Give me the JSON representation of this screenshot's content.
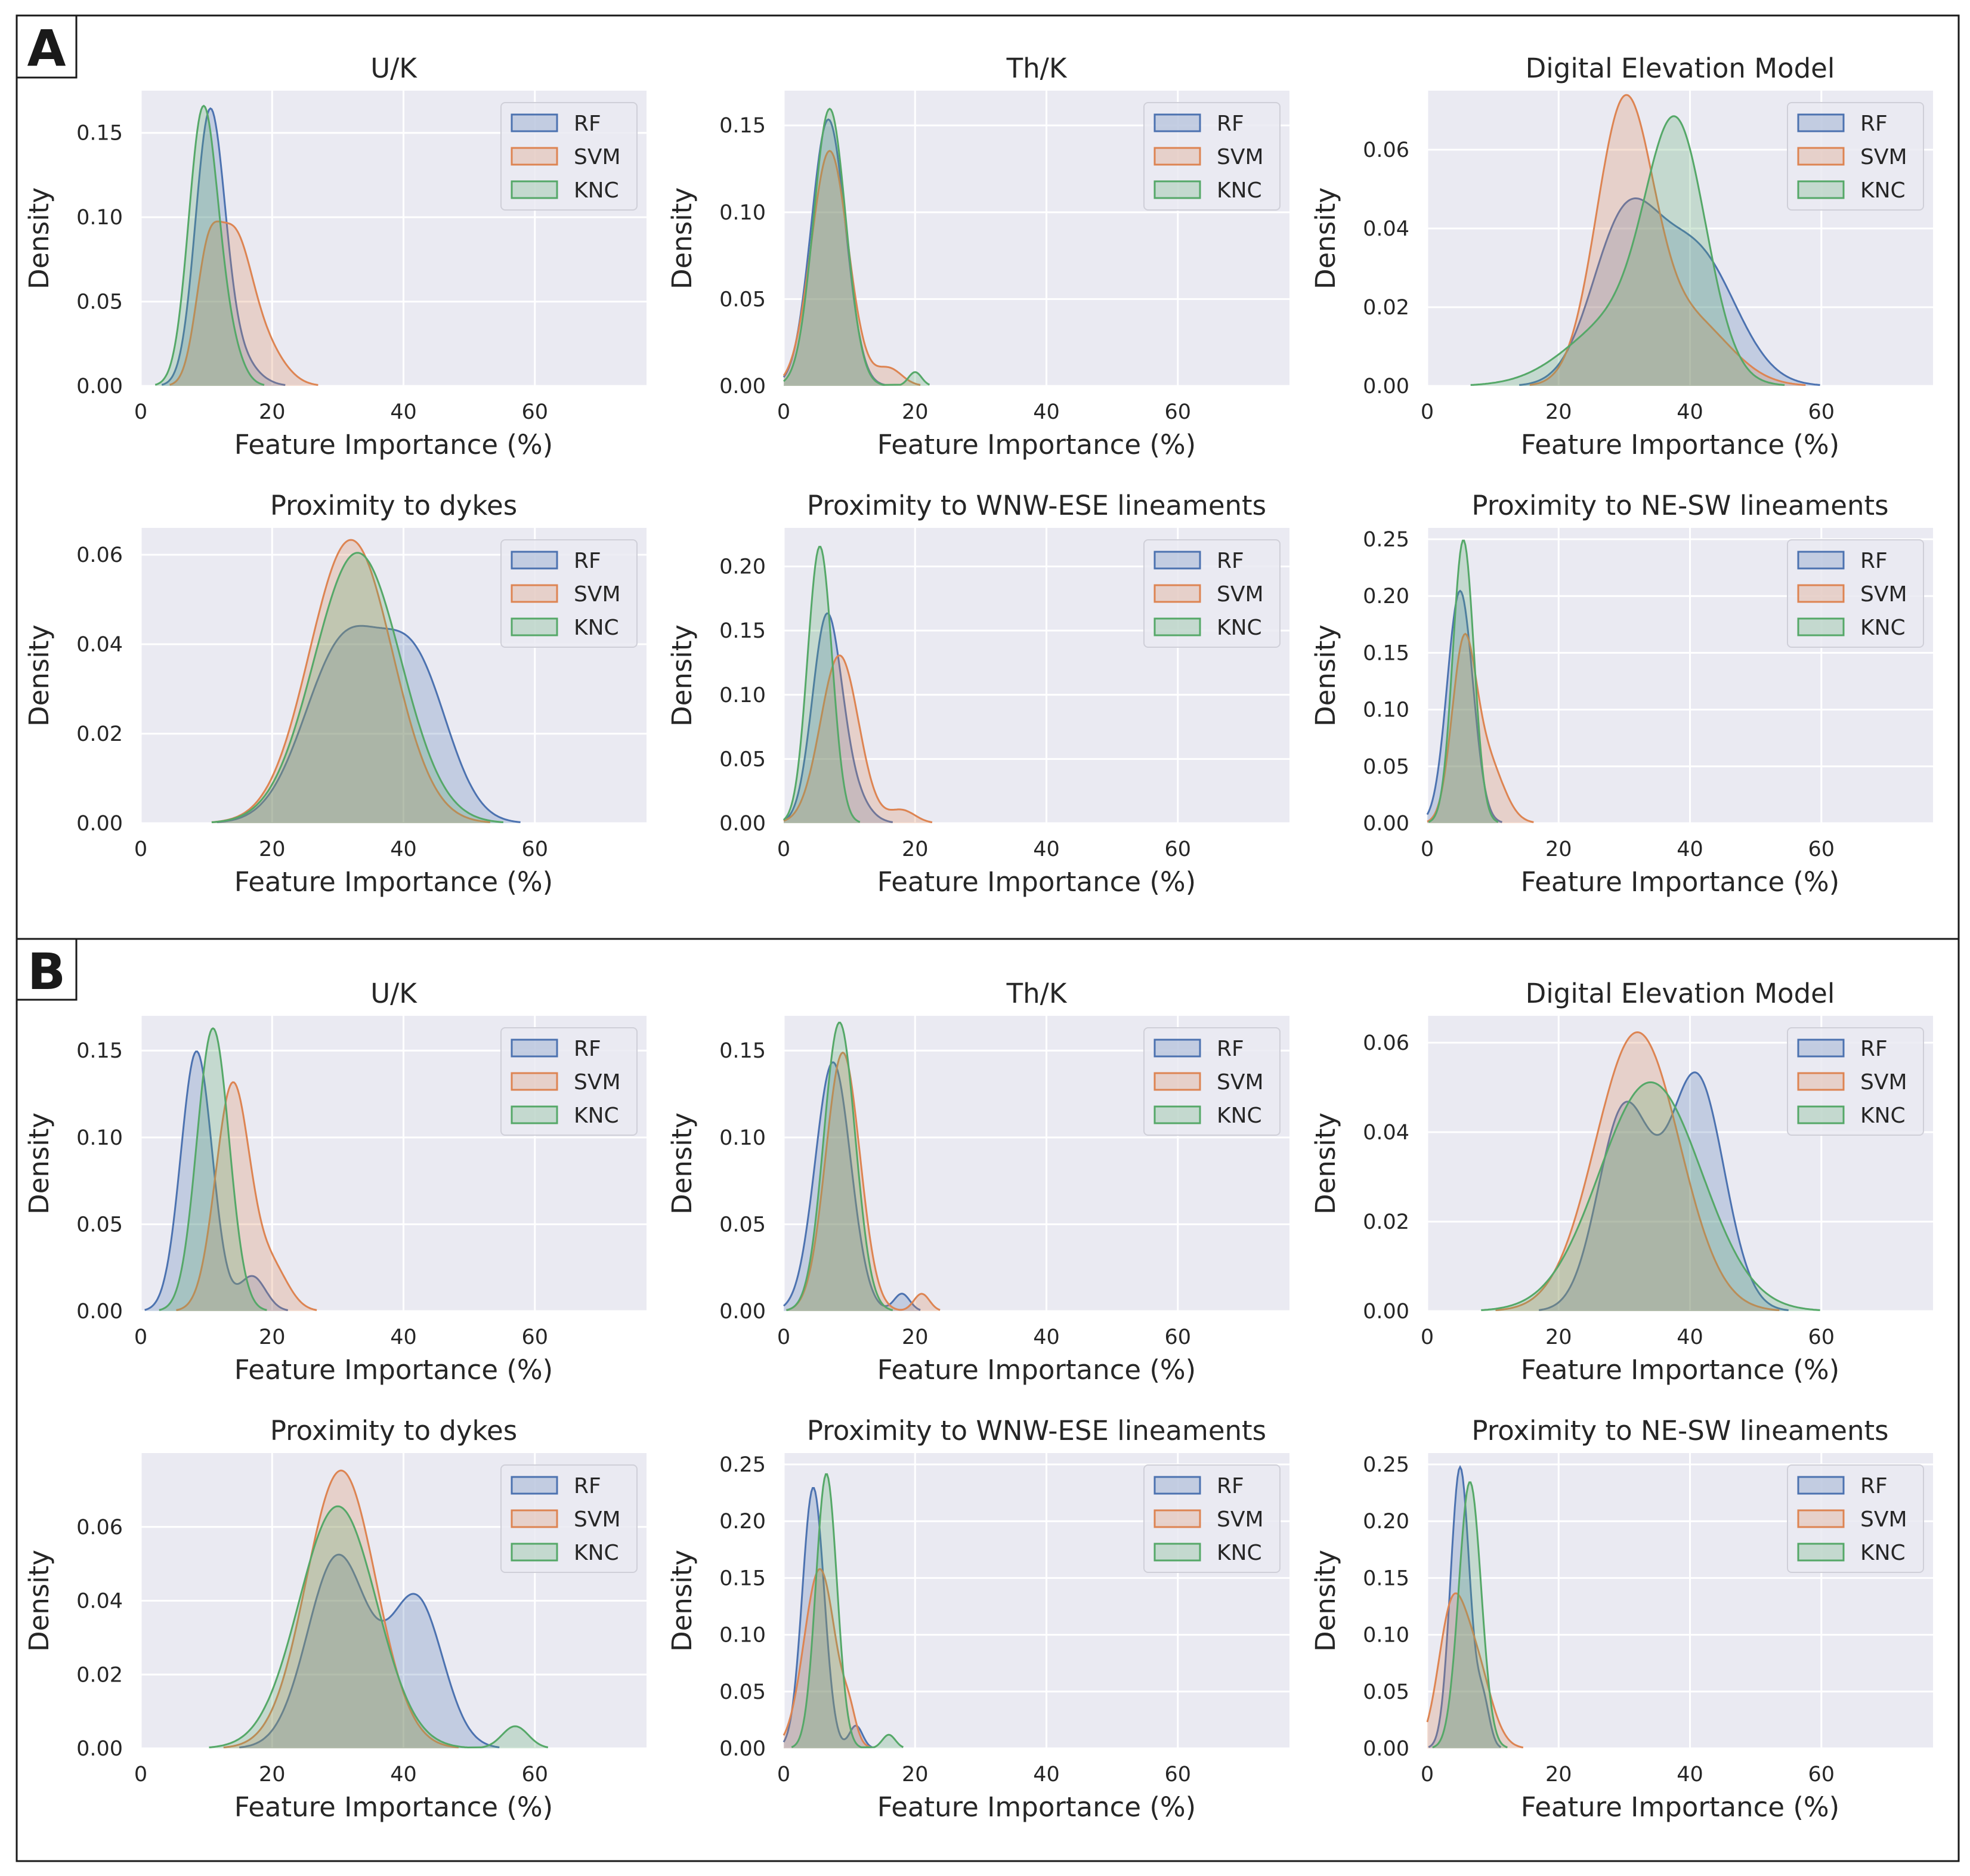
{
  "colors": {
    "RF": "#4c72b0",
    "SVM": "#dd8452",
    "KNC": "#55a868"
  },
  "legend": [
    "RF",
    "SVM",
    "KNC"
  ],
  "xlabel": "Feature Importance (%)",
  "ylabel": "Density",
  "panels": [
    {
      "label": "A"
    },
    {
      "label": "B"
    }
  ],
  "chart_data": [
    {
      "panel": "A",
      "type": "area",
      "title": "U/K",
      "xlabel": "Feature Importance (%)",
      "ylabel": "Density",
      "xlim": [
        0,
        77
      ],
      "ylim": [
        0,
        0.175
      ],
      "xticks": [
        0,
        20,
        40,
        60
      ],
      "yticks": [
        0,
        0.05,
        0.1,
        0.15
      ],
      "ytick_labels": [
        "0.00",
        "0.05",
        "0.10",
        "0.15"
      ],
      "series": [
        {
          "name": "RF",
          "components": [
            {
              "w": 0.85,
              "m": 10.5,
              "s": 2.2
            },
            {
              "w": 0.15,
              "m": 14,
              "s": 3
            }
          ]
        },
        {
          "name": "SVM",
          "components": [
            {
              "w": 0.25,
              "m": 10,
              "s": 1.8
            },
            {
              "w": 0.6,
              "m": 14,
              "s": 2.8
            },
            {
              "w": 0.15,
              "m": 19,
              "s": 3
            }
          ]
        },
        {
          "name": "KNC",
          "components": [
            {
              "w": 0.9,
              "m": 9.5,
              "s": 2.2
            },
            {
              "w": 0.1,
              "m": 13.5,
              "s": 2
            }
          ]
        }
      ]
    },
    {
      "panel": "A",
      "type": "area",
      "title": "Th/K",
      "xlabel": "Feature Importance (%)",
      "ylabel": "Density",
      "xlim": [
        0,
        77
      ],
      "ylim": [
        0,
        0.17
      ],
      "xticks": [
        0,
        20,
        40,
        60
      ],
      "yticks": [
        0,
        0.05,
        0.1,
        0.15
      ],
      "ytick_labels": [
        "0.00",
        "0.05",
        "0.10",
        "0.15"
      ],
      "series": [
        {
          "name": "RF",
          "components": [
            {
              "w": 1.0,
              "m": 6.8,
              "s": 2.6
            }
          ]
        },
        {
          "name": "SVM",
          "components": [
            {
              "w": 0.95,
              "m": 7,
              "s": 2.8
            },
            {
              "w": 0.05,
              "m": 16,
              "s": 2
            }
          ]
        },
        {
          "name": "KNC",
          "components": [
            {
              "w": 0.98,
              "m": 7,
              "s": 2.45
            },
            {
              "w": 0.02,
              "m": 20,
              "s": 1
            }
          ]
        }
      ]
    },
    {
      "panel": "A",
      "type": "area",
      "title": "Digital Elevation Model",
      "xlabel": "Feature Importance (%)",
      "ylabel": "Density",
      "xlim": [
        0,
        77
      ],
      "ylim": [
        0,
        0.075
      ],
      "xticks": [
        0,
        20,
        40,
        60
      ],
      "yticks": [
        0,
        0.02,
        0.04,
        0.06
      ],
      "ytick_labels": [
        "0.00",
        "0.02",
        "0.04",
        "0.06"
      ],
      "series": [
        {
          "name": "RF",
          "components": [
            {
              "w": 0.5,
              "m": 30,
              "s": 5
            },
            {
              "w": 0.5,
              "m": 41,
              "s": 6
            }
          ]
        },
        {
          "name": "SVM",
          "components": [
            {
              "w": 0.75,
              "m": 30,
              "s": 4.3
            },
            {
              "w": 0.25,
              "m": 40,
              "s": 6
            }
          ]
        },
        {
          "name": "KNC",
          "components": [
            {
              "w": 0.65,
              "m": 38,
              "s": 4.5
            },
            {
              "w": 0.35,
              "m": 30,
              "s": 8
            }
          ]
        }
      ]
    },
    {
      "panel": "A",
      "type": "area",
      "title": "Proximity to dykes",
      "xlabel": "Feature Importance (%)",
      "ylabel": "Density",
      "xlim": [
        0,
        77
      ],
      "ylim": [
        0,
        0.066
      ],
      "xticks": [
        0,
        20,
        40,
        60
      ],
      "yticks": [
        0,
        0.02,
        0.04,
        0.06
      ],
      "ytick_labels": [
        "0.00",
        "0.02",
        "0.04",
        "0.06"
      ],
      "series": [
        {
          "name": "RF",
          "components": [
            {
              "w": 0.6,
              "m": 31,
              "s": 6
            },
            {
              "w": 0.4,
              "m": 42,
              "s": 5
            }
          ]
        },
        {
          "name": "SVM",
          "components": [
            {
              "w": 1.0,
              "m": 32,
              "s": 6.3
            }
          ]
        },
        {
          "name": "KNC",
          "components": [
            {
              "w": 1.0,
              "m": 33,
              "s": 6.6
            }
          ]
        }
      ]
    },
    {
      "panel": "A",
      "type": "area",
      "title": "Proximity to WNW-ESE lineaments",
      "xlabel": "Feature Importance (%)",
      "ylabel": "Density",
      "xlim": [
        0,
        77
      ],
      "ylim": [
        0,
        0.23
      ],
      "xticks": [
        0,
        20,
        40,
        60
      ],
      "yticks": [
        0,
        0.05,
        0.1,
        0.15,
        0.2
      ],
      "ytick_labels": [
        "0.00",
        "0.05",
        "0.10",
        "0.15",
        "0.20"
      ],
      "series": [
        {
          "name": "RF",
          "components": [
            {
              "w": 0.85,
              "m": 6.5,
              "s": 2.2
            },
            {
              "w": 0.15,
              "m": 10,
              "s": 2.5
            }
          ]
        },
        {
          "name": "SVM",
          "components": [
            {
              "w": 0.95,
              "m": 8.5,
              "s": 2.9
            },
            {
              "w": 0.05,
              "m": 18,
              "s": 2
            }
          ]
        },
        {
          "name": "KNC",
          "components": [
            {
              "w": 1.0,
              "m": 5.5,
              "s": 1.85
            }
          ]
        }
      ]
    },
    {
      "panel": "A",
      "type": "area",
      "title": "Proximity to NE-SW lineaments",
      "xlabel": "Feature Importance (%)",
      "ylabel": "Density",
      "xlim": [
        0,
        77
      ],
      "ylim": [
        0,
        0.26
      ],
      "xticks": [
        0,
        20,
        40,
        60
      ],
      "yticks": [
        0,
        0.05,
        0.1,
        0.15,
        0.2,
        0.25
      ],
      "ytick_labels": [
        "0.00",
        "0.05",
        "0.10",
        "0.15",
        "0.20",
        "0.25"
      ],
      "series": [
        {
          "name": "RF",
          "components": [
            {
              "w": 1.0,
              "m": 5,
              "s": 1.95
            }
          ]
        },
        {
          "name": "SVM",
          "components": [
            {
              "w": 0.65,
              "m": 5.5,
              "s": 1.8
            },
            {
              "w": 0.35,
              "m": 9,
              "s": 2.5
            }
          ]
        },
        {
          "name": "KNC",
          "components": [
            {
              "w": 1.0,
              "m": 5.5,
              "s": 1.6
            }
          ]
        }
      ]
    },
    {
      "panel": "B",
      "type": "area",
      "title": "U/K",
      "xlabel": "Feature Importance (%)",
      "ylabel": "Density",
      "xlim": [
        0,
        77
      ],
      "ylim": [
        0,
        0.17
      ],
      "xticks": [
        0,
        20,
        40,
        60
      ],
      "yticks": [
        0,
        0.05,
        0.1,
        0.15
      ],
      "ytick_labels": [
        "0.00",
        "0.05",
        "0.10",
        "0.15"
      ],
      "series": [
        {
          "name": "RF",
          "components": [
            {
              "w": 0.9,
              "m": 8.5,
              "s": 2.4
            },
            {
              "w": 0.1,
              "m": 17,
              "s": 2
            }
          ]
        },
        {
          "name": "SVM",
          "components": [
            {
              "w": 0.85,
              "m": 14,
              "s": 2.6
            },
            {
              "w": 0.15,
              "m": 20,
              "s": 2.5
            }
          ]
        },
        {
          "name": "KNC",
          "components": [
            {
              "w": 1.0,
              "m": 11,
              "s": 2.45
            }
          ]
        }
      ]
    },
    {
      "panel": "B",
      "type": "area",
      "title": "Th/K",
      "xlabel": "Feature Importance (%)",
      "ylabel": "Density",
      "xlim": [
        0,
        77
      ],
      "ylim": [
        0,
        0.17
      ],
      "xticks": [
        0,
        20,
        40,
        60
      ],
      "yticks": [
        0,
        0.05,
        0.1,
        0.15
      ],
      "ytick_labels": [
        "0.00",
        "0.05",
        "0.10",
        "0.15"
      ],
      "series": [
        {
          "name": "RF",
          "components": [
            {
              "w": 0.97,
              "m": 7.5,
              "s": 2.7
            },
            {
              "w": 0.03,
              "m": 18,
              "s": 1.2
            }
          ]
        },
        {
          "name": "SVM",
          "components": [
            {
              "w": 0.97,
              "m": 9,
              "s": 2.6
            },
            {
              "w": 0.03,
              "m": 21,
              "s": 1.2
            }
          ]
        },
        {
          "name": "KNC",
          "components": [
            {
              "w": 1.0,
              "m": 8.5,
              "s": 2.4
            }
          ]
        }
      ]
    },
    {
      "panel": "B",
      "type": "area",
      "title": "Digital Elevation Model",
      "xlabel": "Feature Importance (%)",
      "ylabel": "Density",
      "xlim": [
        0,
        77
      ],
      "ylim": [
        0,
        0.066
      ],
      "xticks": [
        0,
        20,
        40,
        60
      ],
      "yticks": [
        0,
        0.02,
        0.04,
        0.06
      ],
      "ytick_labels": [
        "0.00",
        "0.02",
        "0.04",
        "0.06"
      ],
      "series": [
        {
          "name": "RF",
          "components": [
            {
              "w": 0.45,
              "m": 30,
              "s": 4
            },
            {
              "w": 0.55,
              "m": 41,
              "s": 4.2
            }
          ]
        },
        {
          "name": "SVM",
          "components": [
            {
              "w": 1.0,
              "m": 32,
              "s": 6.4
            }
          ]
        },
        {
          "name": "KNC",
          "components": [
            {
              "w": 1.0,
              "m": 34,
              "s": 7.8
            }
          ]
        }
      ]
    },
    {
      "panel": "B",
      "type": "area",
      "title": "Proximity to dykes",
      "xlabel": "Feature Importance (%)",
      "ylabel": "Density",
      "xlim": [
        0,
        77
      ],
      "ylim": [
        0,
        0.08
      ],
      "xticks": [
        0,
        20,
        40,
        60
      ],
      "yticks": [
        0,
        0.02,
        0.04,
        0.06
      ],
      "ytick_labels": [
        "0.00",
        "0.02",
        "0.04",
        "0.06"
      ],
      "series": [
        {
          "name": "RF",
          "components": [
            {
              "w": 0.6,
              "m": 30,
              "s": 4.6
            },
            {
              "w": 0.4,
              "m": 42,
              "s": 4
            }
          ]
        },
        {
          "name": "SVM",
          "components": [
            {
              "w": 1.0,
              "m": 30.5,
              "s": 5.3
            }
          ]
        },
        {
          "name": "KNC",
          "components": [
            {
              "w": 0.97,
              "m": 30,
              "s": 5.9
            },
            {
              "w": 0.03,
              "m": 57,
              "s": 2
            }
          ]
        }
      ]
    },
    {
      "panel": "B",
      "type": "area",
      "title": "Proximity to WNW-ESE lineaments",
      "xlabel": "Feature Importance (%)",
      "ylabel": "Density",
      "xlim": [
        0,
        77
      ],
      "ylim": [
        0,
        0.26
      ],
      "xticks": [
        0,
        20,
        40,
        60
      ],
      "yticks": [
        0,
        0.05,
        0.1,
        0.15,
        0.2,
        0.25
      ],
      "ytick_labels": [
        "0.00",
        "0.05",
        "0.10",
        "0.15",
        "0.20",
        "0.25"
      ],
      "series": [
        {
          "name": "RF",
          "components": [
            {
              "w": 0.95,
              "m": 4.5,
              "s": 1.65
            },
            {
              "w": 0.05,
              "m": 11,
              "s": 1
            }
          ]
        },
        {
          "name": "SVM",
          "components": [
            {
              "w": 0.95,
              "m": 5.5,
              "s": 2.4
            },
            {
              "w": 0.05,
              "m": 10,
              "s": 1
            }
          ]
        },
        {
          "name": "KNC",
          "components": [
            {
              "w": 0.97,
              "m": 6.5,
              "s": 1.6
            },
            {
              "w": 0.03,
              "m": 16,
              "s": 1
            }
          ]
        }
      ]
    },
    {
      "panel": "B",
      "type": "area",
      "title": "Proximity to NE-SW lineaments",
      "xlabel": "Feature Importance (%)",
      "ylabel": "Density",
      "xlim": [
        0,
        77
      ],
      "ylim": [
        0,
        0.26
      ],
      "xticks": [
        0,
        20,
        40,
        60
      ],
      "yticks": [
        0,
        0.05,
        0.1,
        0.15,
        0.2,
        0.25
      ],
      "ytick_labels": [
        "0.00",
        "0.05",
        "0.10",
        "0.15",
        "0.20",
        "0.25"
      ],
      "series": [
        {
          "name": "RF",
          "components": [
            {
              "w": 0.9,
              "m": 5,
              "s": 1.45
            },
            {
              "w": 0.1,
              "m": 8.5,
              "s": 1
            }
          ]
        },
        {
          "name": "SVM",
          "components": [
            {
              "w": 0.5,
              "m": 3.5,
              "s": 2
            },
            {
              "w": 0.5,
              "m": 7,
              "s": 2.5
            }
          ]
        },
        {
          "name": "KNC",
          "components": [
            {
              "w": 1.0,
              "m": 6.5,
              "s": 1.7
            }
          ]
        }
      ]
    }
  ]
}
